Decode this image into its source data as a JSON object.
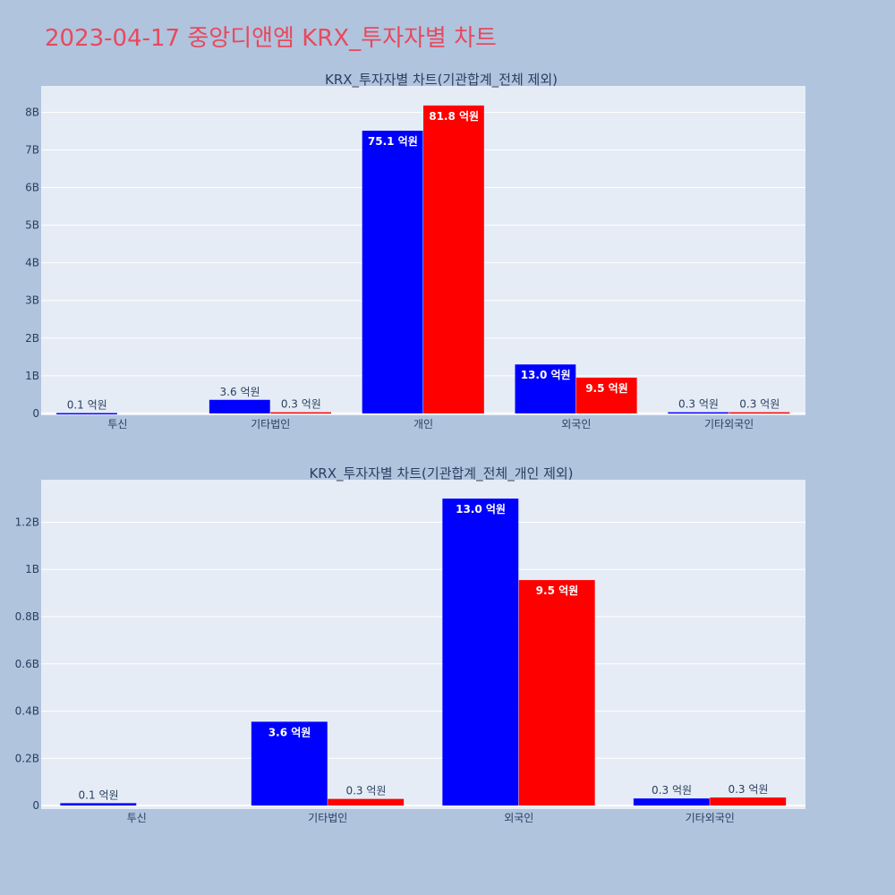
{
  "page": {
    "title": "2023-04-17 중앙디앤엠 KRX_투자자별 차트",
    "background": "#b0c4de",
    "title_color": "#e8495e",
    "plot_background": "#e5ecf6"
  },
  "chart_data": [
    {
      "type": "bar",
      "title": "KRX_투자자별 차트(기관합계_전체 제외)",
      "categories": [
        "투신",
        "기타법인",
        "개인",
        "외국인",
        "기타외국인"
      ],
      "ylim": [
        -50000000,
        8700000000
      ],
      "yticks": [
        0,
        1000000000,
        2000000000,
        3000000000,
        4000000000,
        5000000000,
        6000000000,
        7000000000,
        8000000000
      ],
      "ytick_labels": [
        "0",
        "1B",
        "2B",
        "3B",
        "4B",
        "5B",
        "6B",
        "7B",
        "8B"
      ],
      "grid": true,
      "series": [
        {
          "color": "#0000ff",
          "values": [
            10000000,
            360000000,
            7510000000,
            1300000000,
            30000000
          ],
          "labels": [
            "0.1 억원",
            "3.6 억원",
            "75.1 억원",
            "13.0 억원",
            "0.3 억원"
          ]
        },
        {
          "color": "#ff0000",
          "values": [
            0,
            30000000,
            8180000000,
            950000000,
            30000000
          ],
          "labels": [
            "",
            "0.3 억원",
            "81.8 억원",
            "9.5 억원",
            "0.3 억원"
          ]
        }
      ]
    },
    {
      "type": "bar",
      "title": "KRX_투자자별 차트(기관합계_전체_개인 제외)",
      "categories": [
        "투신",
        "기타법인",
        "외국인",
        "기타외국인"
      ],
      "ylim": [
        -15000000,
        1380000000
      ],
      "yticks": [
        0,
        200000000,
        400000000,
        600000000,
        800000000,
        1000000000,
        1200000000
      ],
      "ytick_labels": [
        "0",
        "0.2B",
        "0.4B",
        "0.6B",
        "0.8B",
        "1B",
        "1.2B"
      ],
      "grid": true,
      "series": [
        {
          "color": "#0000ff",
          "values": [
            10000000,
            355000000,
            1300000000,
            30000000
          ],
          "labels": [
            "0.1 억원",
            "3.6 억원",
            "13.0 억원",
            "0.3 억원"
          ]
        },
        {
          "color": "#ff0000",
          "values": [
            0,
            28000000,
            955000000,
            34000000
          ],
          "labels": [
            "",
            "0.3 억원",
            "9.5 억원",
            "0.3 억원"
          ]
        }
      ]
    }
  ]
}
